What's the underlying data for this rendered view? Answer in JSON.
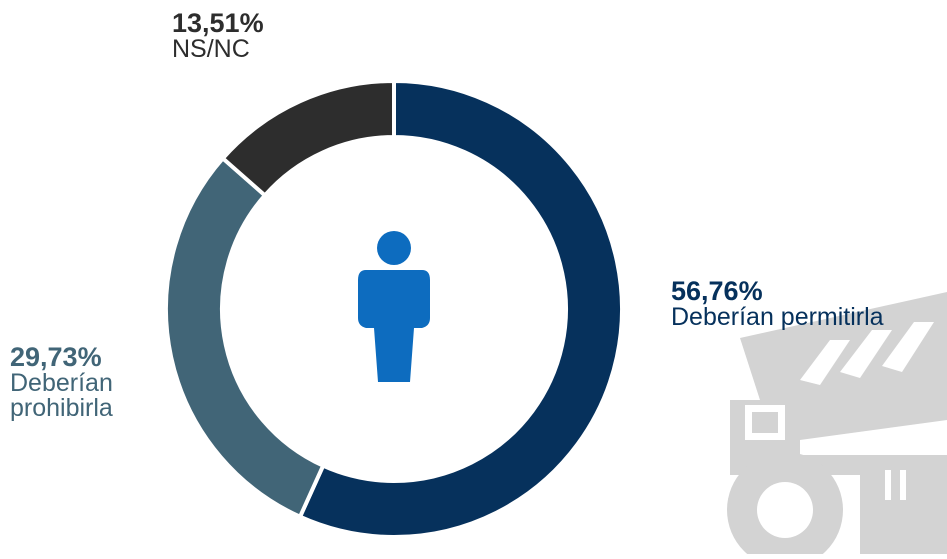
{
  "colors": {
    "permitir": "#06315c",
    "prohibir": "#416577",
    "nsnc": "#2d2d2d",
    "person_icon": "#0d6cbf",
    "truck_watermark": "#d3d3d3"
  },
  "icons": {
    "center": "person-icon",
    "watermark": "mining-truck-icon"
  },
  "chart_data": {
    "type": "pie",
    "style": "donut",
    "categories": [
      "Deberían permitirla",
      "Deberían prohibirla",
      "NS/NC"
    ],
    "values": [
      56.76,
      29.73,
      13.51
    ],
    "value_labels": [
      "56,76%",
      "29,73%",
      "13,51%"
    ],
    "colors": [
      "#06315c",
      "#416577",
      "#2d2d2d"
    ],
    "title": "",
    "legend": "none"
  }
}
